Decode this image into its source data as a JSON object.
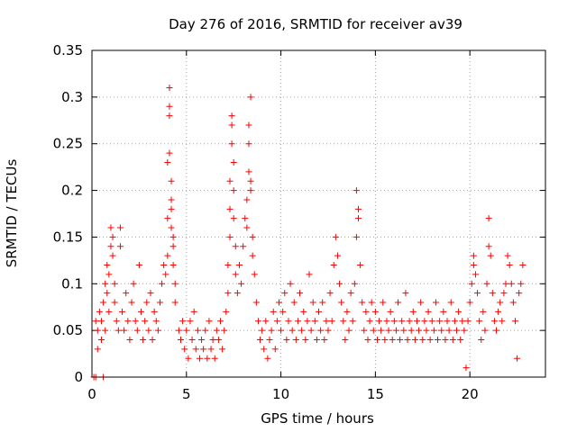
{
  "chart_data": {
    "type": "scatter",
    "title": "Day 276 of 2016, SRMTID for receiver av39",
    "xlabel": "GPS time / hours",
    "ylabel": "SRMTID / TECUs",
    "xlim": [
      0,
      24
    ],
    "ylim": [
      0,
      0.35
    ],
    "x_ticks": [
      0,
      5,
      10,
      15,
      20
    ],
    "y_ticks": [
      0,
      0.05,
      0.1,
      0.15,
      0.2,
      0.25,
      0.3,
      0.35
    ],
    "x_tick_labels": [
      "0",
      "5",
      "10",
      "15",
      "20"
    ],
    "y_tick_labels": [
      "0",
      "0.05",
      "0.1",
      "0.15",
      "0.2",
      "0.25",
      "0.3",
      "0.35"
    ],
    "grid": true,
    "marker": "+",
    "color": "#ff0000",
    "series": [
      {
        "name": "SRMTID",
        "points": [
          [
            0.1,
            0.0
          ],
          [
            0.2,
            0.0
          ],
          [
            0.6,
            0.0
          ],
          [
            0.2,
            0.06
          ],
          [
            0.3,
            0.03
          ],
          [
            0.3,
            0.05
          ],
          [
            0.4,
            0.07
          ],
          [
            0.5,
            0.04
          ],
          [
            0.5,
            0.06
          ],
          [
            0.6,
            0.08
          ],
          [
            0.7,
            0.1
          ],
          [
            0.7,
            0.05
          ],
          [
            0.8,
            0.09
          ],
          [
            0.8,
            0.12
          ],
          [
            0.9,
            0.07
          ],
          [
            0.9,
            0.11
          ],
          [
            1.0,
            0.14
          ],
          [
            1.0,
            0.16
          ],
          [
            1.1,
            0.15
          ],
          [
            1.1,
            0.13
          ],
          [
            1.2,
            0.1
          ],
          [
            1.2,
            0.08
          ],
          [
            1.3,
            0.06
          ],
          [
            1.4,
            0.05
          ],
          [
            1.5,
            0.16
          ],
          [
            1.5,
            0.14
          ],
          [
            1.6,
            0.07
          ],
          [
            1.7,
            0.05
          ],
          [
            1.8,
            0.09
          ],
          [
            1.9,
            0.06
          ],
          [
            2.0,
            0.04
          ],
          [
            2.1,
            0.08
          ],
          [
            2.2,
            0.1
          ],
          [
            2.3,
            0.06
          ],
          [
            2.4,
            0.05
          ],
          [
            2.5,
            0.12
          ],
          [
            2.6,
            0.07
          ],
          [
            2.7,
            0.04
          ],
          [
            2.8,
            0.06
          ],
          [
            2.9,
            0.08
          ],
          [
            3.0,
            0.05
          ],
          [
            3.1,
            0.09
          ],
          [
            3.2,
            0.04
          ],
          [
            3.3,
            0.07
          ],
          [
            3.4,
            0.06
          ],
          [
            3.5,
            0.05
          ],
          [
            3.6,
            0.08
          ],
          [
            3.7,
            0.1
          ],
          [
            3.8,
            0.12
          ],
          [
            3.9,
            0.11
          ],
          [
            4.0,
            0.13
          ],
          [
            4.0,
            0.17
          ],
          [
            4.0,
            0.23
          ],
          [
            4.1,
            0.31
          ],
          [
            4.1,
            0.29
          ],
          [
            4.1,
            0.28
          ],
          [
            4.1,
            0.24
          ],
          [
            4.2,
            0.21
          ],
          [
            4.2,
            0.19
          ],
          [
            4.2,
            0.18
          ],
          [
            4.2,
            0.16
          ],
          [
            4.3,
            0.15
          ],
          [
            4.3,
            0.14
          ],
          [
            4.3,
            0.12
          ],
          [
            4.4,
            0.1
          ],
          [
            4.4,
            0.08
          ],
          [
            4.6,
            0.05
          ],
          [
            4.7,
            0.04
          ],
          [
            4.8,
            0.06
          ],
          [
            4.9,
            0.03
          ],
          [
            5.0,
            0.05
          ],
          [
            5.1,
            0.02
          ],
          [
            5.2,
            0.06
          ],
          [
            5.3,
            0.04
          ],
          [
            5.4,
            0.07
          ],
          [
            5.5,
            0.03
          ],
          [
            5.6,
            0.05
          ],
          [
            5.7,
            0.02
          ],
          [
            5.8,
            0.04
          ],
          [
            5.9,
            0.03
          ],
          [
            6.0,
            0.05
          ],
          [
            6.1,
            0.02
          ],
          [
            6.2,
            0.06
          ],
          [
            6.3,
            0.03
          ],
          [
            6.4,
            0.04
          ],
          [
            6.5,
            0.02
          ],
          [
            6.6,
            0.05
          ],
          [
            6.7,
            0.04
          ],
          [
            6.8,
            0.06
          ],
          [
            6.9,
            0.03
          ],
          [
            7.0,
            0.05
          ],
          [
            7.1,
            0.07
          ],
          [
            7.2,
            0.09
          ],
          [
            7.2,
            0.12
          ],
          [
            7.3,
            0.15
          ],
          [
            7.3,
            0.18
          ],
          [
            7.3,
            0.21
          ],
          [
            7.4,
            0.25
          ],
          [
            7.4,
            0.27
          ],
          [
            7.4,
            0.28
          ],
          [
            7.5,
            0.23
          ],
          [
            7.5,
            0.2
          ],
          [
            7.5,
            0.17
          ],
          [
            7.6,
            0.14
          ],
          [
            7.6,
            0.11
          ],
          [
            7.7,
            0.09
          ],
          [
            7.8,
            0.12
          ],
          [
            7.9,
            0.1
          ],
          [
            8.0,
            0.14
          ],
          [
            8.1,
            0.17
          ],
          [
            8.2,
            0.16
          ],
          [
            8.2,
            0.19
          ],
          [
            8.3,
            0.22
          ],
          [
            8.3,
            0.25
          ],
          [
            8.3,
            0.27
          ],
          [
            8.4,
            0.3
          ],
          [
            8.4,
            0.21
          ],
          [
            8.4,
            0.2
          ],
          [
            8.5,
            0.15
          ],
          [
            8.5,
            0.13
          ],
          [
            8.6,
            0.11
          ],
          [
            8.7,
            0.08
          ],
          [
            8.8,
            0.06
          ],
          [
            8.9,
            0.04
          ],
          [
            9.0,
            0.05
          ],
          [
            9.1,
            0.03
          ],
          [
            9.2,
            0.06
          ],
          [
            9.3,
            0.02
          ],
          [
            9.4,
            0.04
          ],
          [
            9.5,
            0.05
          ],
          [
            9.6,
            0.07
          ],
          [
            9.7,
            0.03
          ],
          [
            9.8,
            0.06
          ],
          [
            9.9,
            0.08
          ],
          [
            10.0,
            0.05
          ],
          [
            10.1,
            0.07
          ],
          [
            10.2,
            0.09
          ],
          [
            10.3,
            0.04
          ],
          [
            10.4,
            0.06
          ],
          [
            10.5,
            0.1
          ],
          [
            10.6,
            0.05
          ],
          [
            10.7,
            0.08
          ],
          [
            10.8,
            0.04
          ],
          [
            10.9,
            0.06
          ],
          [
            11.0,
            0.09
          ],
          [
            11.1,
            0.05
          ],
          [
            11.2,
            0.07
          ],
          [
            11.3,
            0.04
          ],
          [
            11.4,
            0.06
          ],
          [
            11.5,
            0.11
          ],
          [
            11.6,
            0.05
          ],
          [
            11.7,
            0.08
          ],
          [
            11.8,
            0.06
          ],
          [
            11.9,
            0.04
          ],
          [
            12.0,
            0.07
          ],
          [
            12.1,
            0.05
          ],
          [
            12.2,
            0.08
          ],
          [
            12.3,
            0.04
          ],
          [
            12.4,
            0.06
          ],
          [
            12.5,
            0.05
          ],
          [
            12.6,
            0.09
          ],
          [
            12.7,
            0.06
          ],
          [
            12.8,
            0.12
          ],
          [
            12.9,
            0.15
          ],
          [
            13.0,
            0.13
          ],
          [
            13.1,
            0.1
          ],
          [
            13.2,
            0.08
          ],
          [
            13.3,
            0.06
          ],
          [
            13.4,
            0.04
          ],
          [
            13.5,
            0.07
          ],
          [
            13.6,
            0.05
          ],
          [
            13.7,
            0.09
          ],
          [
            13.8,
            0.06
          ],
          [
            13.9,
            0.1
          ],
          [
            14.0,
            0.15
          ],
          [
            14.0,
            0.2
          ],
          [
            14.1,
            0.18
          ],
          [
            14.1,
            0.17
          ],
          [
            14.2,
            0.12
          ],
          [
            14.3,
            0.08
          ],
          [
            14.4,
            0.05
          ],
          [
            14.5,
            0.07
          ],
          [
            14.6,
            0.04
          ],
          [
            14.7,
            0.06
          ],
          [
            14.8,
            0.08
          ],
          [
            14.9,
            0.05
          ],
          [
            15.0,
            0.07
          ],
          [
            15.1,
            0.04
          ],
          [
            15.2,
            0.06
          ],
          [
            15.3,
            0.05
          ],
          [
            15.4,
            0.08
          ],
          [
            15.5,
            0.04
          ],
          [
            15.6,
            0.06
          ],
          [
            15.7,
            0.05
          ],
          [
            15.8,
            0.07
          ],
          [
            15.9,
            0.04
          ],
          [
            16.0,
            0.06
          ],
          [
            16.1,
            0.05
          ],
          [
            16.2,
            0.08
          ],
          [
            16.3,
            0.04
          ],
          [
            16.4,
            0.06
          ],
          [
            16.5,
            0.05
          ],
          [
            16.6,
            0.09
          ],
          [
            16.7,
            0.04
          ],
          [
            16.8,
            0.06
          ],
          [
            16.9,
            0.05
          ],
          [
            17.0,
            0.07
          ],
          [
            17.1,
            0.04
          ],
          [
            17.2,
            0.06
          ],
          [
            17.3,
            0.05
          ],
          [
            17.4,
            0.08
          ],
          [
            17.5,
            0.04
          ],
          [
            17.6,
            0.06
          ],
          [
            17.7,
            0.05
          ],
          [
            17.8,
            0.07
          ],
          [
            17.9,
            0.04
          ],
          [
            18.0,
            0.06
          ],
          [
            18.1,
            0.05
          ],
          [
            18.2,
            0.08
          ],
          [
            18.3,
            0.04
          ],
          [
            18.4,
            0.06
          ],
          [
            18.5,
            0.05
          ],
          [
            18.6,
            0.07
          ],
          [
            18.7,
            0.04
          ],
          [
            18.8,
            0.06
          ],
          [
            18.9,
            0.05
          ],
          [
            19.0,
            0.08
          ],
          [
            19.1,
            0.04
          ],
          [
            19.2,
            0.06
          ],
          [
            19.3,
            0.05
          ],
          [
            19.4,
            0.07
          ],
          [
            19.5,
            0.04
          ],
          [
            19.6,
            0.06
          ],
          [
            19.7,
            0.05
          ],
          [
            19.8,
            0.01
          ],
          [
            19.9,
            0.06
          ],
          [
            20.0,
            0.08
          ],
          [
            20.1,
            0.1
          ],
          [
            20.2,
            0.13
          ],
          [
            20.2,
            0.12
          ],
          [
            20.3,
            0.11
          ],
          [
            20.4,
            0.09
          ],
          [
            20.5,
            0.06
          ],
          [
            20.6,
            0.04
          ],
          [
            20.7,
            0.07
          ],
          [
            20.8,
            0.05
          ],
          [
            20.9,
            0.1
          ],
          [
            21.0,
            0.17
          ],
          [
            21.0,
            0.14
          ],
          [
            21.1,
            0.13
          ],
          [
            21.2,
            0.09
          ],
          [
            21.3,
            0.06
          ],
          [
            21.4,
            0.05
          ],
          [
            21.5,
            0.07
          ],
          [
            21.6,
            0.08
          ],
          [
            21.7,
            0.06
          ],
          [
            21.8,
            0.09
          ],
          [
            21.9,
            0.1
          ],
          [
            22.0,
            0.13
          ],
          [
            22.1,
            0.12
          ],
          [
            22.2,
            0.1
          ],
          [
            22.3,
            0.08
          ],
          [
            22.4,
            0.06
          ],
          [
            22.5,
            0.02
          ],
          [
            22.6,
            0.09
          ],
          [
            22.7,
            0.1
          ],
          [
            22.8,
            0.12
          ]
        ]
      }
    ]
  }
}
